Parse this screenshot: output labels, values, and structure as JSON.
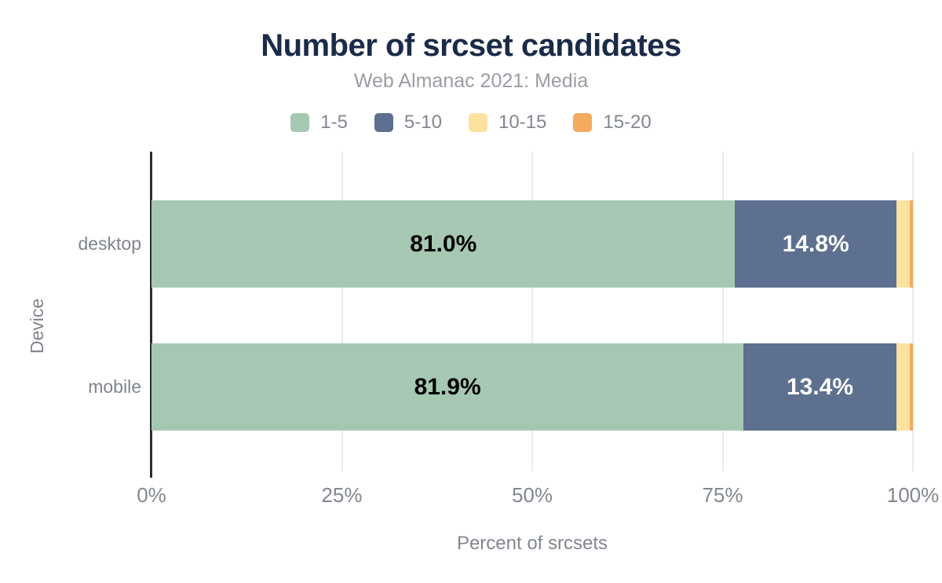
{
  "chart_data": {
    "type": "bar",
    "orientation": "horizontal",
    "stacked": true,
    "normalized": true,
    "title": "Number of srcset candidates",
    "subtitle": "Web Almanac 2021: Media",
    "xlabel": "Percent of srcsets",
    "ylabel": "Device",
    "categories": [
      "desktop",
      "mobile"
    ],
    "xlim": [
      0,
      100
    ],
    "x_ticks": [
      "0%",
      "25%",
      "50%",
      "75%",
      "100%"
    ],
    "grid": "vertical",
    "legend_position": "top",
    "series": [
      {
        "name": "1-5",
        "color": "#a6c8b3",
        "label_color": "#000000",
        "values": [
          81.0,
          81.9
        ],
        "labels": [
          "81.0%",
          "81.9%"
        ]
      },
      {
        "name": "5-10",
        "color": "#5d7090",
        "label_color": "#ffffff",
        "values": [
          14.8,
          13.4
        ],
        "labels": [
          "14.8%",
          "13.4%"
        ]
      },
      {
        "name": "10-15",
        "color": "#fde29f",
        "label_color": "#000000",
        "values": [
          2.1,
          2.1
        ],
        "labels": [
          "",
          ""
        ]
      },
      {
        "name": "15-20",
        "color": "#f4aa5f",
        "label_color": "#000000",
        "values": [
          0.5,
          0.5
        ],
        "labels": [
          "",
          ""
        ]
      }
    ]
  }
}
